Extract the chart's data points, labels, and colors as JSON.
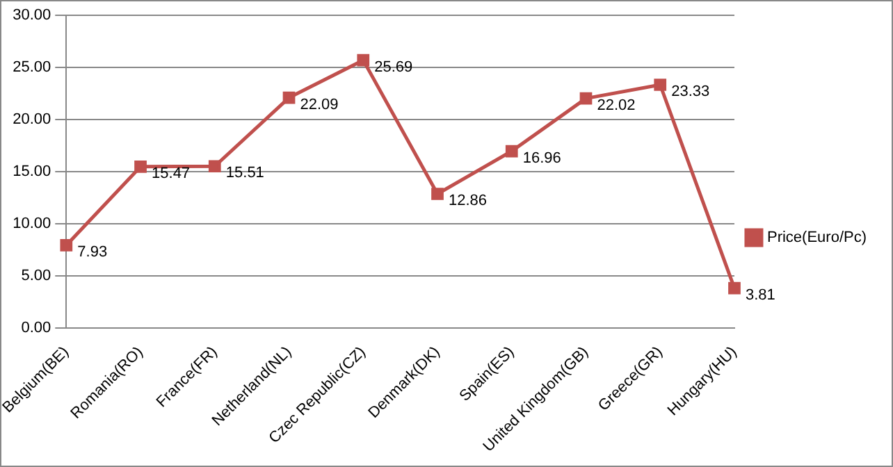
{
  "chart_data": {
    "type": "line",
    "categories": [
      "Belgium(BE)",
      "Romania(RO)",
      "France(FR)",
      "Netherland(NL)",
      "Czec Republic(CZ)",
      "Denmark(DK)",
      "Spain(ES)",
      "United Kingdom(GB)",
      "Greece(GR)",
      "Hungary(HU)"
    ],
    "series": [
      {
        "name": "Price(Euro/Pc)",
        "color": "#c0504d",
        "values": [
          7.93,
          15.47,
          15.51,
          22.09,
          25.69,
          12.86,
          16.96,
          22.02,
          23.33,
          3.81
        ]
      }
    ],
    "ylim": [
      0,
      30
    ],
    "yticks": [
      {
        "value": 0,
        "label": "0.00"
      },
      {
        "value": 5,
        "label": "5.00"
      },
      {
        "value": 10,
        "label": "10.00"
      },
      {
        "value": 15,
        "label": "15.00"
      },
      {
        "value": 20,
        "label": "20.00"
      },
      {
        "value": 25,
        "label": "25.00"
      },
      {
        "value": 30,
        "label": "30.00"
      }
    ],
    "grid": "y",
    "legend": "right",
    "marker": "square",
    "line_style": "solid",
    "data_labels": true
  }
}
